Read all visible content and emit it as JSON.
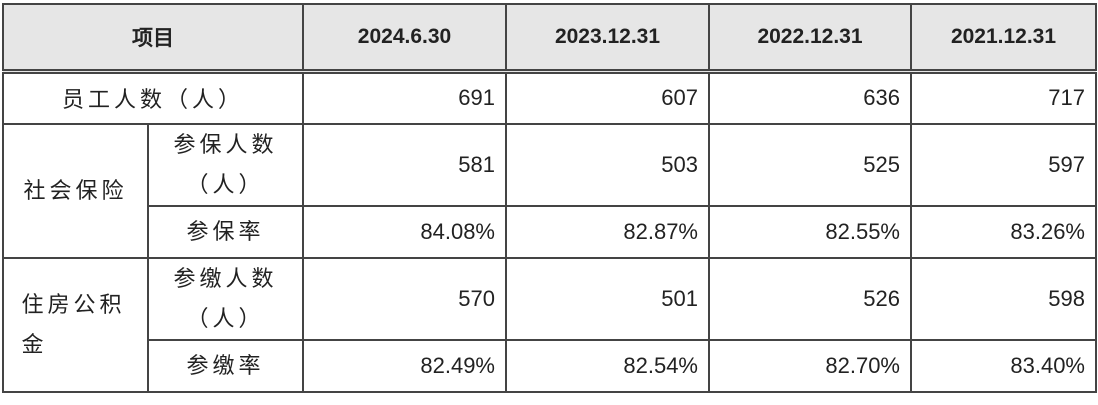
{
  "table": {
    "header": [
      "项目",
      "2024.6.30",
      "2023.12.31",
      "2022.12.31",
      "2021.12.31"
    ],
    "staff": {
      "label": "员工人数（人）",
      "values": [
        "691",
        "607",
        "636",
        "717"
      ]
    },
    "groups": [
      {
        "label": "社会保险",
        "rows": [
          {
            "label": "参保人数（人）",
            "values": [
              "581",
              "503",
              "525",
              "597"
            ]
          },
          {
            "label": "参保率",
            "values": [
              "84.08%",
              "82.87%",
              "82.55%",
              "83.26%"
            ]
          }
        ]
      },
      {
        "label": "住房公积金",
        "rows": [
          {
            "label": "参缴人数（人）",
            "values": [
              "570",
              "501",
              "526",
              "598"
            ]
          },
          {
            "label": "参缴率",
            "values": [
              "82.49%",
              "82.54%",
              "82.70%",
              "83.40%"
            ]
          }
        ]
      }
    ]
  }
}
